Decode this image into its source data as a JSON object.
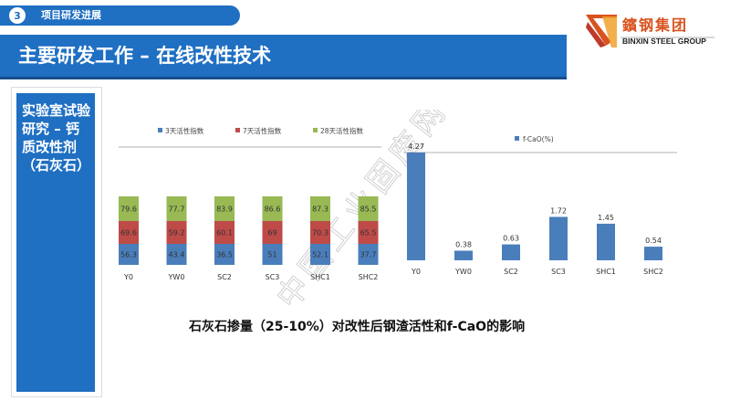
{
  "section": {
    "number": "3",
    "label": "项目研发进展"
  },
  "title": "主要研发工作 – 在线改性技术",
  "logo": {
    "name_cn": "鑌钢集团",
    "name_en": "BINXIN STEEL GROUP"
  },
  "left_panel": {
    "text": "实验室试验研究 – 钙质改性剂（石灰石）"
  },
  "caption": "石灰石掺量（25-10%）对改性后钢渣活性和f-CaO的影响",
  "watermark": "中国工业固废网",
  "colors": {
    "primary": "#1f6fc2",
    "series_3d": "#4a7ebb",
    "series_7d": "#be4b48",
    "series_28d": "#98b954",
    "logo_red": "#d9531e"
  },
  "chart_data": [
    {
      "type": "bar",
      "stacked": true,
      "categories": [
        "Y0",
        "YW0",
        "SC2",
        "SC3",
        "SHC1",
        "SHC2"
      ],
      "series": [
        {
          "name": "3天活性指数",
          "values": [
            56.3,
            43.4,
            36.5,
            51,
            52.1,
            37.7
          ]
        },
        {
          "name": "7天活性指数",
          "values": [
            69.6,
            59.2,
            60.1,
            69,
            70.3,
            65.5
          ]
        },
        {
          "name": "28天活性指数",
          "values": [
            79.6,
            77.7,
            83.9,
            86.6,
            87.3,
            85.5
          ]
        }
      ],
      "legend": "top",
      "grid": false
    },
    {
      "type": "bar",
      "categories": [
        "Y0",
        "YW0",
        "SC2",
        "SC3",
        "SHC1",
        "SHC2"
      ],
      "series": [
        {
          "name": "f-CaO(%)",
          "values": [
            4.27,
            0.38,
            0.63,
            1.72,
            1.45,
            0.54
          ]
        }
      ],
      "legend": "top-left",
      "grid": false
    }
  ]
}
